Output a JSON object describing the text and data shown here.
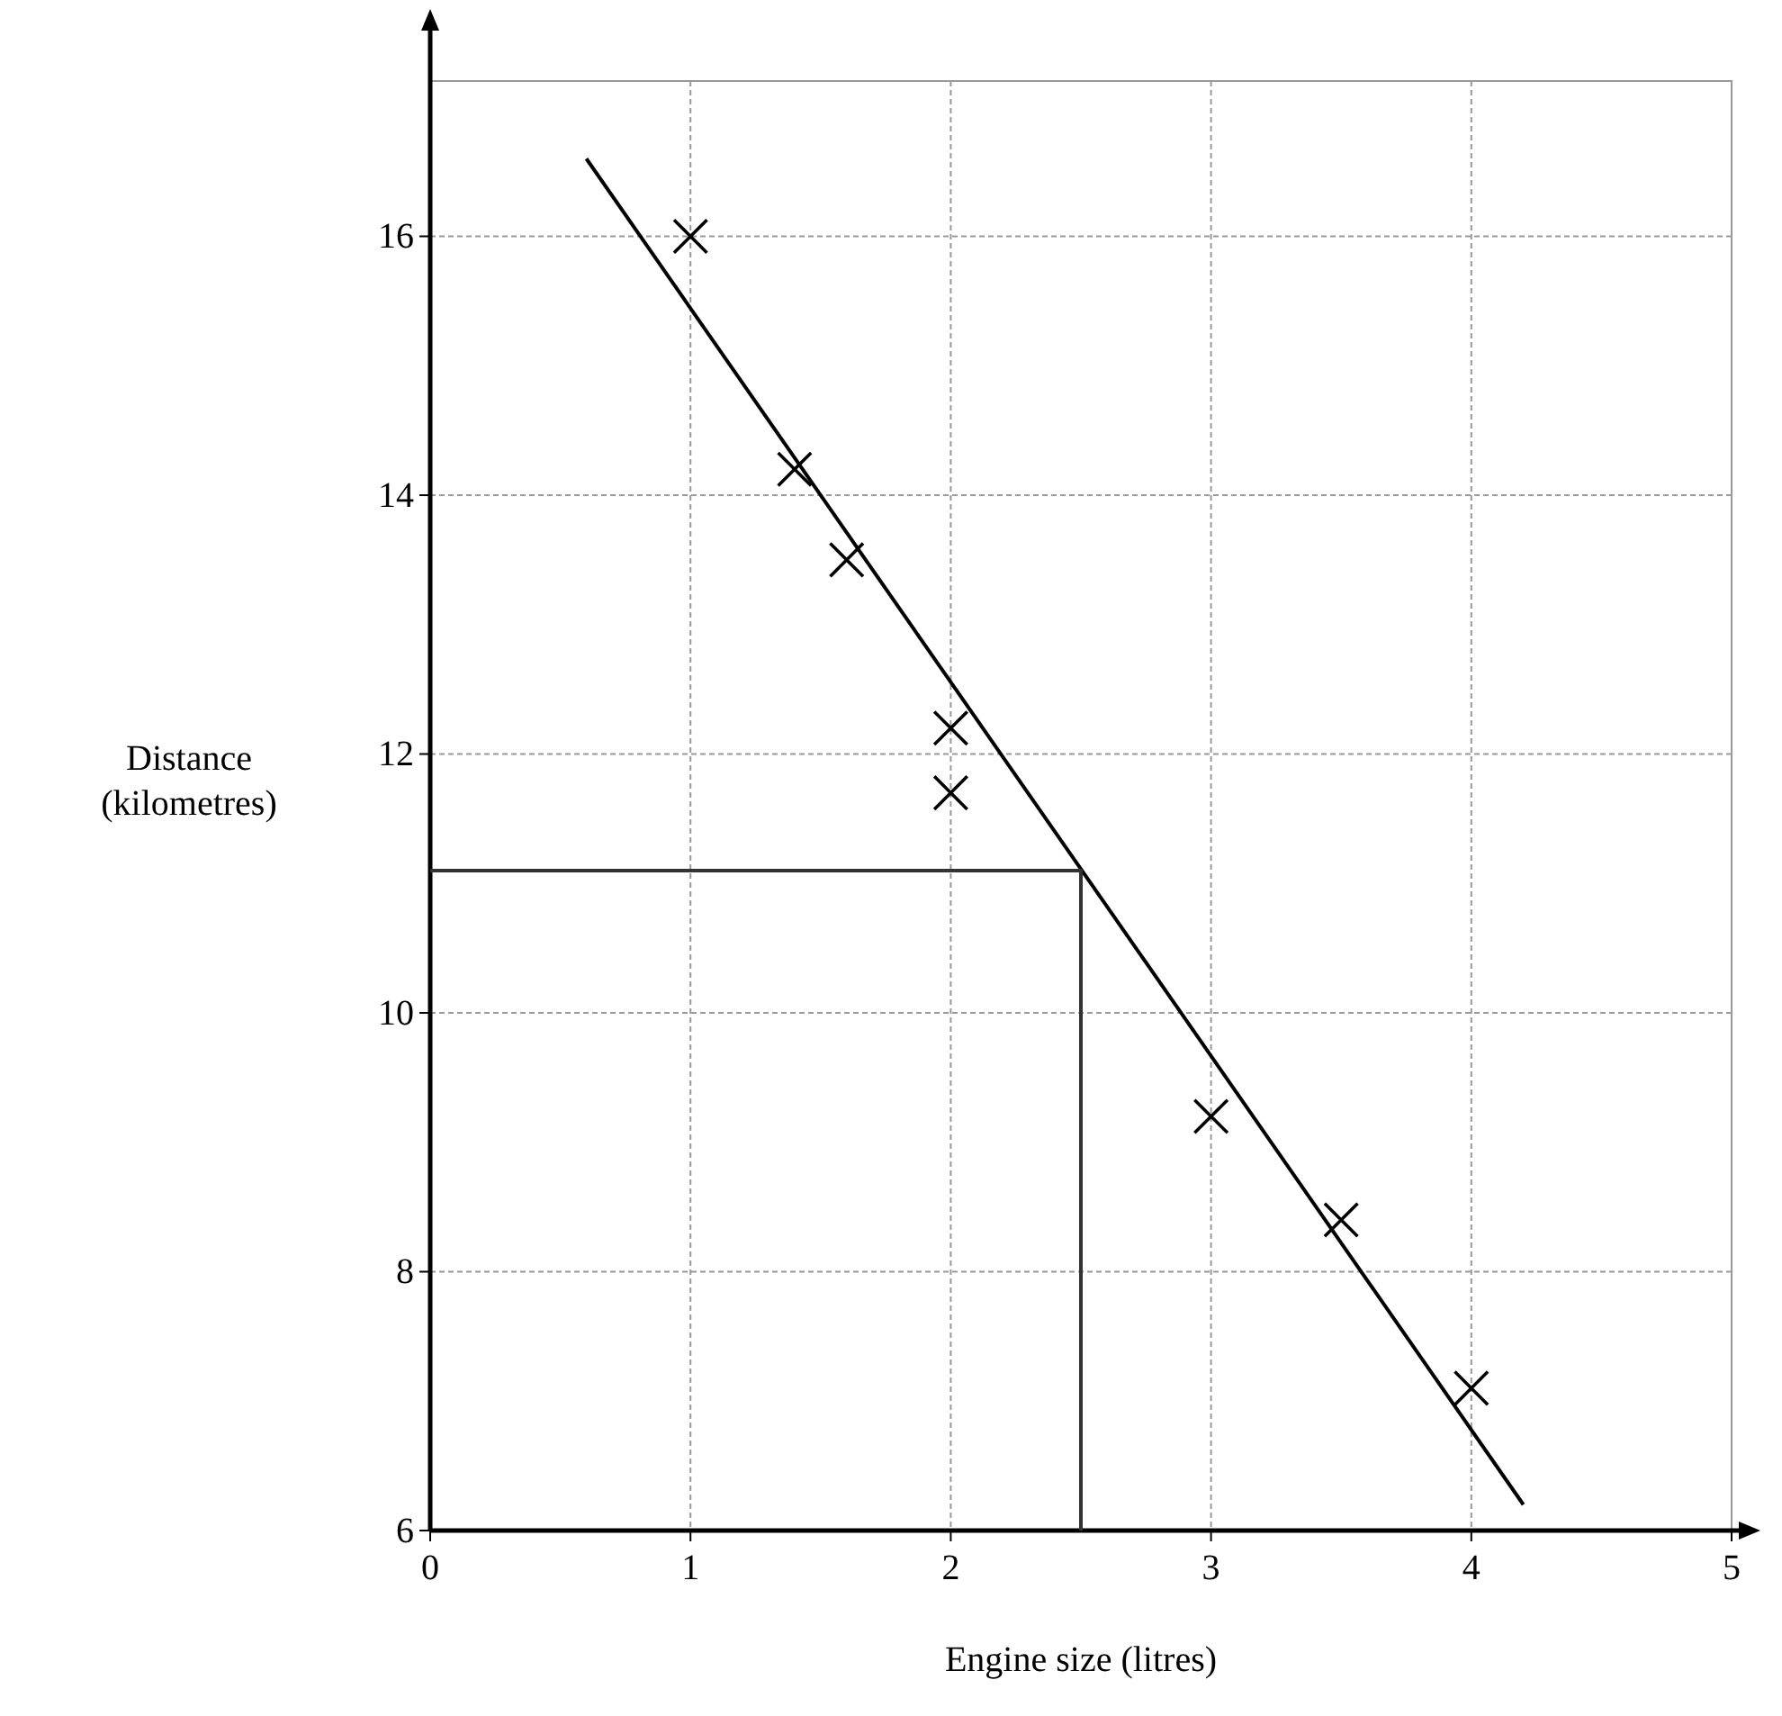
{
  "chart_data": {
    "type": "scatter",
    "xlabel": "Engine size (litres)",
    "ylabel": "Distance\n(kilometres)",
    "xlim": [
      0,
      5
    ],
    "ylim": [
      6,
      17.2
    ],
    "xticks": [
      0,
      1,
      2,
      3,
      4,
      5
    ],
    "yticks": [
      6,
      8,
      10,
      12,
      14,
      16
    ],
    "grid": true,
    "series": [
      {
        "marker": "cross",
        "color": "#000000",
        "x": [
          1,
          1.4,
          1.6,
          2,
          2,
          3,
          3.5,
          4
        ],
        "values": [
          16,
          14.2,
          13.5,
          12.2,
          11.7,
          9.2,
          8.4,
          7.1
        ]
      },
      {
        "type": "line",
        "marker": "none",
        "color": "#000000",
        "line_style": "solid",
        "x": [
          0.6,
          4.2
        ],
        "values": [
          16.6,
          6.2
        ]
      },
      {
        "type": "line",
        "marker": "none",
        "color": "#333333",
        "line_style": "solid",
        "x": [
          0,
          2.5,
          2.5
        ],
        "values": [
          11.1,
          11.1,
          6
        ]
      }
    ]
  }
}
